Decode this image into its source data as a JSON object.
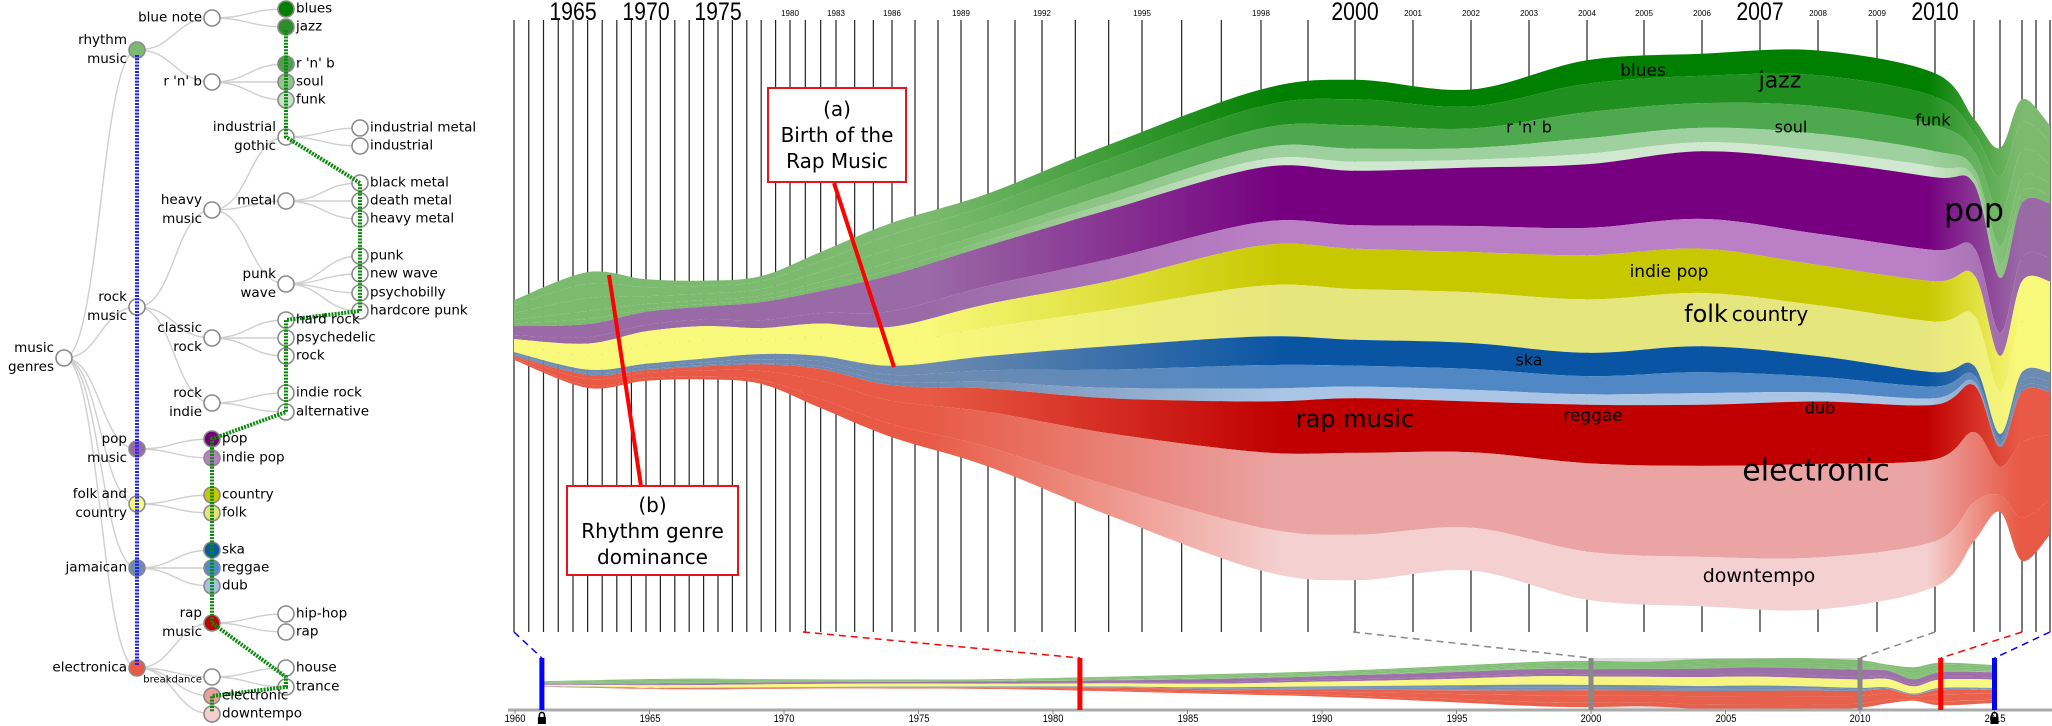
{
  "tree": {
    "nodes": [
      {
        "label": "music\ngenres",
        "parent": null,
        "color": null
      },
      {
        "label": "rhythm\nmusic",
        "parent": 0,
        "color": "#7cbb6f"
      },
      {
        "label": "blue note",
        "parent": 1,
        "color": null
      },
      {
        "label": "blues",
        "parent": 2,
        "color": "#007f00"
      },
      {
        "label": "jazz",
        "parent": 2,
        "color": "#2e8b2e"
      },
      {
        "label": "r 'n' b",
        "parent": 1,
        "color": null
      },
      {
        "label": "r 'n' b",
        "parent": 5,
        "color": "#4e9f4e"
      },
      {
        "label": "soul",
        "parent": 5,
        "color": "#8fc78f"
      },
      {
        "label": "funk",
        "parent": 5,
        "color": "#c6e3c6"
      },
      {
        "label": "rock\nmusic",
        "parent": 0,
        "color": null
      },
      {
        "label": "heavy\nmusic",
        "parent": 9,
        "color": null
      },
      {
        "label": "industrial\ngothic",
        "parent": 10,
        "color": null
      },
      {
        "label": "industrial metal",
        "parent": 11,
        "color": null
      },
      {
        "label": "industrial",
        "parent": 11,
        "color": null
      },
      {
        "label": "metal",
        "parent": 10,
        "color": null
      },
      {
        "label": "black metal",
        "parent": 14,
        "color": null
      },
      {
        "label": "death metal",
        "parent": 14,
        "color": null
      },
      {
        "label": "heavy metal",
        "parent": 14,
        "color": null
      },
      {
        "label": "punk\nwave",
        "parent": 10,
        "color": null
      },
      {
        "label": "punk",
        "parent": 18,
        "color": null
      },
      {
        "label": "new wave",
        "parent": 18,
        "color": null
      },
      {
        "label": "psychobilly",
        "parent": 18,
        "color": null
      },
      {
        "label": "hardcore punk",
        "parent": 18,
        "color": null
      },
      {
        "label": "classic\nrock",
        "parent": 9,
        "color": null
      },
      {
        "label": "hard rock",
        "parent": 23,
        "color": null
      },
      {
        "label": "psychedelic",
        "parent": 23,
        "color": null
      },
      {
        "label": "rock",
        "parent": 23,
        "color": null
      },
      {
        "label": "rock\nindie",
        "parent": 9,
        "color": null
      },
      {
        "label": "indie rock",
        "parent": 27,
        "color": null
      },
      {
        "label": "alternative",
        "parent": 27,
        "color": null
      },
      {
        "label": "pop\nmusic",
        "parent": 0,
        "color": "#9a6aa6"
      },
      {
        "label": "pop",
        "parent": 30,
        "color": "#750075"
      },
      {
        "label": "indie pop",
        "parent": 30,
        "color": "#b97fc4"
      },
      {
        "label": "folk and\ncountry",
        "parent": 0,
        "color": "#fafa80"
      },
      {
        "label": "country",
        "parent": 33,
        "color": "#c8c800"
      },
      {
        "label": "folk",
        "parent": 33,
        "color": "#e3e37c"
      },
      {
        "label": "jamaican",
        "parent": 0,
        "color": "#6d8bb0"
      },
      {
        "label": "ska",
        "parent": 36,
        "color": "#0a59a6"
      },
      {
        "label": "reggae",
        "parent": 36,
        "color": "#4f8cc9"
      },
      {
        "label": "dub",
        "parent": 36,
        "color": "#a5c2e3"
      },
      {
        "label": "electronica",
        "parent": 0,
        "color": "#e85a45"
      },
      {
        "label": "rap\nmusic",
        "parent": 40,
        "color": "#c00000"
      },
      {
        "label": "hip-hop",
        "parent": 41,
        "color": null
      },
      {
        "label": "rap",
        "parent": 41,
        "color": null
      },
      {
        "label": "breakdance",
        "parent": 40,
        "color": null
      },
      {
        "label": "house",
        "parent": 44,
        "color": null
      },
      {
        "label": "trance",
        "parent": 44,
        "color": null
      },
      {
        "label": "electronic",
        "parent": 40,
        "color": "#e8a0a0"
      },
      {
        "label": "downtempo",
        "parent": 40,
        "color": "#f4cfcf"
      }
    ],
    "level_cut_color": "#2020ff",
    "leaf_cut_color": "#0a8a0a"
  },
  "annotations": [
    {
      "id": "a",
      "label": "(a)",
      "lines": [
        "Birth of the",
        "Rap Music"
      ]
    },
    {
      "id": "b",
      "label": "(b)",
      "lines": [
        "Rhythm genre",
        "dominance"
      ]
    }
  ],
  "timeline": {
    "top_labels": [
      "1965",
      "1970",
      "1975",
      "1980",
      "1983",
      "1986",
      "1989",
      "1992",
      "1995",
      "1998",
      "2000",
      "2001",
      "2002",
      "2003",
      "2004",
      "2005",
      "2006",
      "2007",
      "2008",
      "2009",
      "2010"
    ],
    "overview_labels": [
      "1960",
      "1965",
      "1970",
      "1975",
      "1980",
      "1985",
      "1990",
      "1995",
      "2000",
      "2005",
      "2010",
      "2015"
    ],
    "markers": [
      {
        "year": 1961,
        "color": "#0000ff",
        "locked": true
      },
      {
        "year": 1981,
        "color": "#ff0000",
        "locked": false
      },
      {
        "year": 2000,
        "color": "#888888",
        "locked": false
      },
      {
        "year": 2010,
        "color": "#888888",
        "locked": false
      },
      {
        "year": 2013,
        "color": "#ff0000",
        "locked": false
      },
      {
        "year": 2015,
        "color": "#0000ff",
        "locked": true
      }
    ],
    "selected_range": [
      2000,
      2010
    ]
  },
  "chart_data": {
    "type": "area",
    "layout": "streamgraph",
    "x": [
      1961,
      1966,
      1970,
      1974,
      1978,
      1982,
      1986,
      1990,
      1994,
      1998,
      2000,
      2002,
      2004,
      2006,
      2008,
      2010,
      2011,
      2012,
      2013,
      2015
    ],
    "xlim": [
      1960,
      2016
    ],
    "grid": "vertical yearly lines",
    "series": [
      {
        "name": "blues",
        "group": "rhythm music",
        "color": "#007f00",
        "group_color": "#7cbb6f",
        "values": [
          4,
          9,
          6,
          4,
          4,
          7,
          9,
          9,
          11,
          13,
          15,
          13,
          18,
          17,
          19,
          18,
          11,
          22,
          18,
          13
        ]
      },
      {
        "name": "jazz",
        "group": "rhythm music",
        "color": "#1f8f1f",
        "group_color": "#7cbb6f",
        "values": [
          6,
          11,
          7,
          6,
          6,
          8,
          11,
          11,
          14,
          17,
          20,
          17,
          22,
          21,
          24,
          22,
          14,
          28,
          22,
          17
        ]
      },
      {
        "name": "r 'n' b",
        "group": "rhythm music",
        "color": "#4ea84e",
        "group_color": "#7cbb6f",
        "values": [
          5,
          10,
          6,
          5,
          5,
          8,
          10,
          10,
          13,
          15,
          18,
          15,
          20,
          19,
          21,
          20,
          13,
          25,
          20,
          15
        ]
      },
      {
        "name": "soul",
        "group": "rhythm music",
        "color": "#9fd09f",
        "group_color": "#7cbb6f",
        "values": [
          3,
          6,
          4,
          3,
          3,
          4,
          6,
          6,
          7,
          9,
          10,
          9,
          12,
          11,
          13,
          12,
          7,
          15,
          12,
          9
        ]
      },
      {
        "name": "funk",
        "group": "rhythm music",
        "color": "#cfe8cf",
        "group_color": "#7cbb6f",
        "values": [
          2,
          4,
          2,
          2,
          2,
          3,
          4,
          4,
          5,
          6,
          7,
          6,
          8,
          7,
          8,
          8,
          5,
          10,
          8,
          6
        ]
      },
      {
        "name": "pop",
        "group": "pop music",
        "color": "#760080",
        "group_color": "#9a6aa6",
        "values": [
          7,
          10,
          10,
          10,
          14,
          17,
          28,
          31,
          38,
          42,
          42,
          45,
          49,
          52,
          56,
          56,
          49,
          42,
          42,
          42
        ]
      },
      {
        "name": "indie pop",
        "group": "pop music",
        "color": "#bb7fc6",
        "group_color": "#9a6aa6",
        "values": [
          3,
          5,
          5,
          5,
          6,
          8,
          12,
          14,
          17,
          18,
          18,
          20,
          21,
          23,
          24,
          24,
          21,
          18,
          18,
          18
        ]
      },
      {
        "name": "country",
        "group": "folk and country",
        "color": "#c8c800",
        "group_color": "#f8f87a",
        "values": [
          4,
          9,
          11,
          11,
          9,
          11,
          13,
          18,
          22,
          31,
          31,
          31,
          34,
          34,
          31,
          31,
          31,
          27,
          31,
          31
        ]
      },
      {
        "name": "folk",
        "group": "folk and country",
        "color": "#e6e67e",
        "group_color": "#f8f87a",
        "values": [
          6,
          11,
          14,
          14,
          11,
          14,
          17,
          22,
          28,
          39,
          39,
          39,
          41,
          41,
          39,
          39,
          39,
          33,
          39,
          39
        ]
      },
      {
        "name": "ska",
        "group": "jamaican",
        "color": "#0a55a3",
        "group_color": "#6d8bb0",
        "values": [
          1,
          2,
          2,
          3,
          4,
          4,
          7,
          11,
          18,
          22,
          20,
          20,
          18,
          20,
          16,
          11,
          7,
          4,
          7,
          7
        ]
      },
      {
        "name": "reggae",
        "group": "jamaican",
        "color": "#5088c5",
        "group_color": "#6d8bb0",
        "values": [
          1,
          1,
          2,
          2,
          3,
          4,
          5,
          9,
          14,
          18,
          16,
          16,
          14,
          16,
          12,
          9,
          5,
          4,
          5,
          5
        ]
      },
      {
        "name": "dub",
        "group": "jamaican",
        "color": "#a9c4e4",
        "group_color": "#6d8bb0",
        "values": [
          1,
          1,
          1,
          1,
          1,
          2,
          3,
          5,
          8,
          10,
          9,
          9,
          8,
          9,
          7,
          5,
          3,
          2,
          3,
          3
        ]
      },
      {
        "name": "rap music",
        "group": "electronica",
        "color": "#c00000",
        "group_color": "#e85a45",
        "values": [
          1,
          3,
          2,
          3,
          5,
          9,
          12,
          18,
          27,
          39,
          42,
          39,
          45,
          47,
          48,
          42,
          36,
          15,
          39,
          33
        ]
      },
      {
        "name": "electronic",
        "group": "electronica",
        "color": "#eaa4a4",
        "group_color": "#e85a45",
        "values": [
          1,
          5,
          4,
          5,
          7,
          14,
          18,
          27,
          40,
          58,
          63,
          58,
          68,
          70,
          72,
          63,
          54,
          22,
          58,
          50
        ]
      },
      {
        "name": "downtempo",
        "group": "electronica",
        "color": "#f4d0d0",
        "group_color": "#e85a45",
        "values": [
          1,
          2,
          2,
          2,
          3,
          7,
          10,
          15,
          23,
          33,
          35,
          33,
          37,
          38,
          40,
          35,
          30,
          13,
          33,
          27
        ]
      }
    ]
  }
}
